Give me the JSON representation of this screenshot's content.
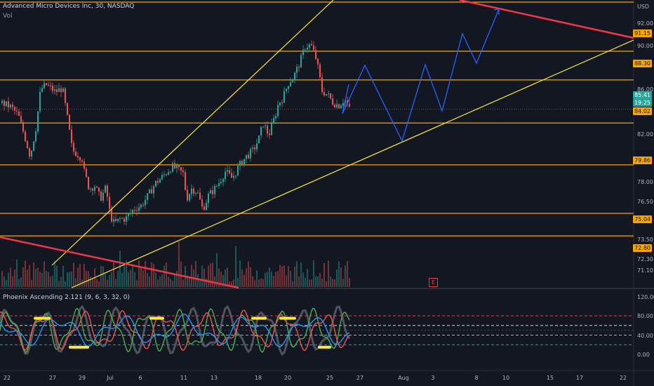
{
  "header": {
    "symbol_title": "Advanced Micro Devices Inc, 30, NASDAQ",
    "volume_label": "Vol",
    "currency": "USD"
  },
  "price_axis": {
    "ticks": [
      "92.00",
      "90.00",
      "86.00",
      "82.00",
      "78.00",
      "76.50",
      "73.50",
      "72.30",
      "71.10"
    ],
    "level_labels": [
      "91.15",
      "88.30",
      "84.02",
      "79.86",
      "75.04",
      "72.80"
    ],
    "current_price": "85.41",
    "countdown": "19:25"
  },
  "indicator": {
    "name": "Phoenix Ascending 2.121 (9, 6, 3, 32, 0)",
    "ticks": [
      "120.00",
      "80.00",
      "40.00",
      "0.00"
    ]
  },
  "time_axis": {
    "labels": [
      "22",
      "27",
      "29",
      "Jul",
      "6",
      "11",
      "13",
      "18",
      "20",
      "25",
      "27",
      "Aug",
      "3",
      "8",
      "10",
      "15",
      "17",
      "22"
    ]
  },
  "event_badge": "E",
  "chart_data": {
    "type": "candlestick",
    "horizontal_levels": [
      91.15,
      88.3,
      84.02,
      79.86,
      75.04,
      72.8
    ],
    "last_price": 85.41,
    "price_range": [
      70.5,
      93.5
    ],
    "indicator_range": [
      -10,
      120
    ],
    "indicator_dashed_levels": [
      80,
      60,
      40,
      20
    ]
  },
  "colors": {
    "background": "#131722",
    "up": "#26a69a",
    "down": "#ef5350",
    "level": "#f7a600",
    "trendline_yellow": "#ffeb3b",
    "trendline_red": "#f23645",
    "projection": "#2962ff"
  }
}
